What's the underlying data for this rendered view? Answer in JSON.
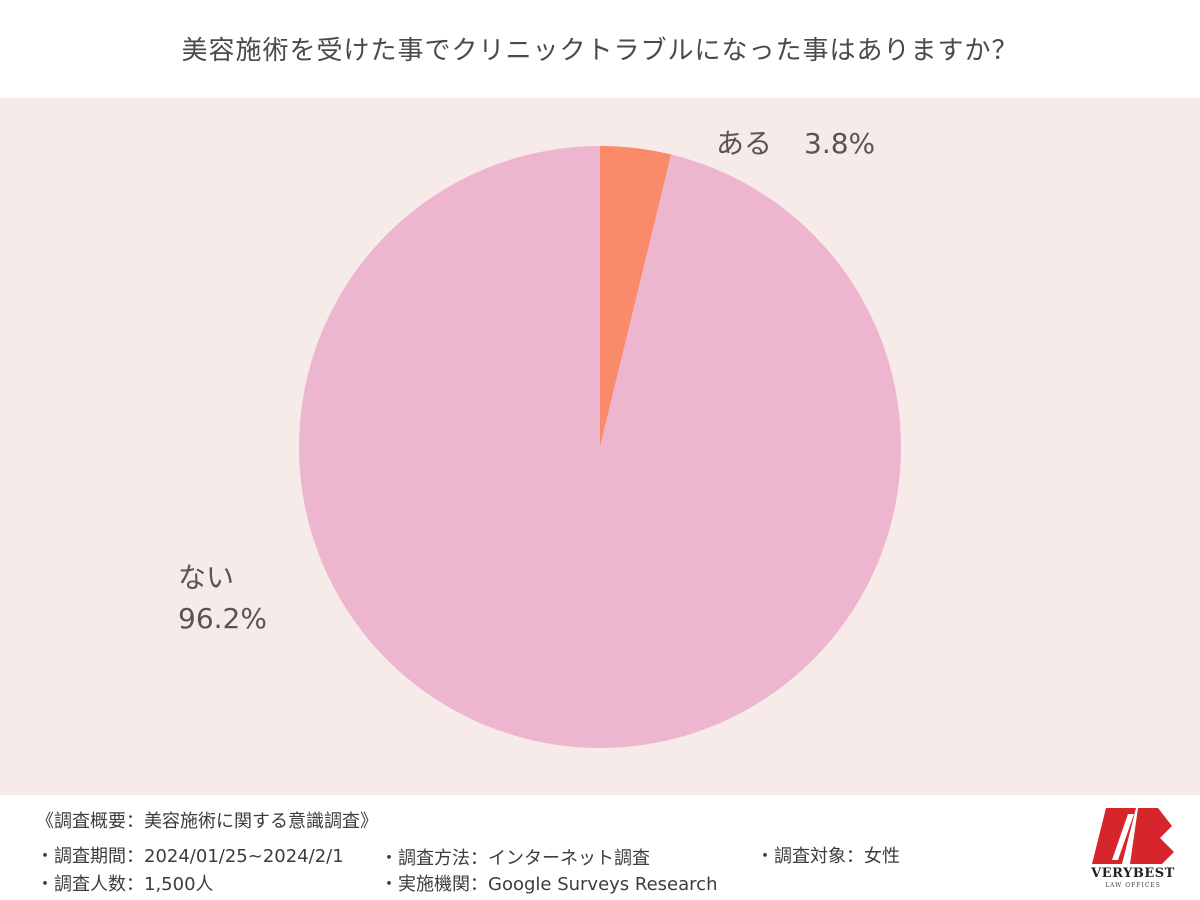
{
  "title": "美容施術を受けた事でクリニックトラブルになった事はありますか？",
  "chart_data": {
    "type": "pie",
    "title": "美容施術を受けた事でクリニックトラブルになった事はありますか？",
    "slices": [
      {
        "label": "ある",
        "value": 3.8,
        "value_label": "3.8%",
        "color": "#fa8b6a"
      },
      {
        "label": "ない",
        "value": 96.2,
        "value_label": "96.2%",
        "color": "#edb6ce"
      }
    ],
    "start": "12 o'clock, clockwise",
    "legend": "none"
  },
  "colors": {
    "chart_background": "#f7ebea",
    "slice_aru": "#fa8b6a",
    "slice_nai": "#edb6ce",
    "logo_red": "#d7262b"
  },
  "footer": {
    "heading": "《調査概要：美容施術に関する意識調査》",
    "period": "・調査期間：2024/01/25~2024/2/1",
    "method": "・調査方法：インターネット調査",
    "target": "・調査対象：女性",
    "count": "・調査人数：1,500人",
    "org": "・実施機関：Google Surveys  Research"
  },
  "logo": {
    "icon": "verybest-logo-mark",
    "text": "VERYBEST",
    "sub": "LAW OFFICES"
  }
}
